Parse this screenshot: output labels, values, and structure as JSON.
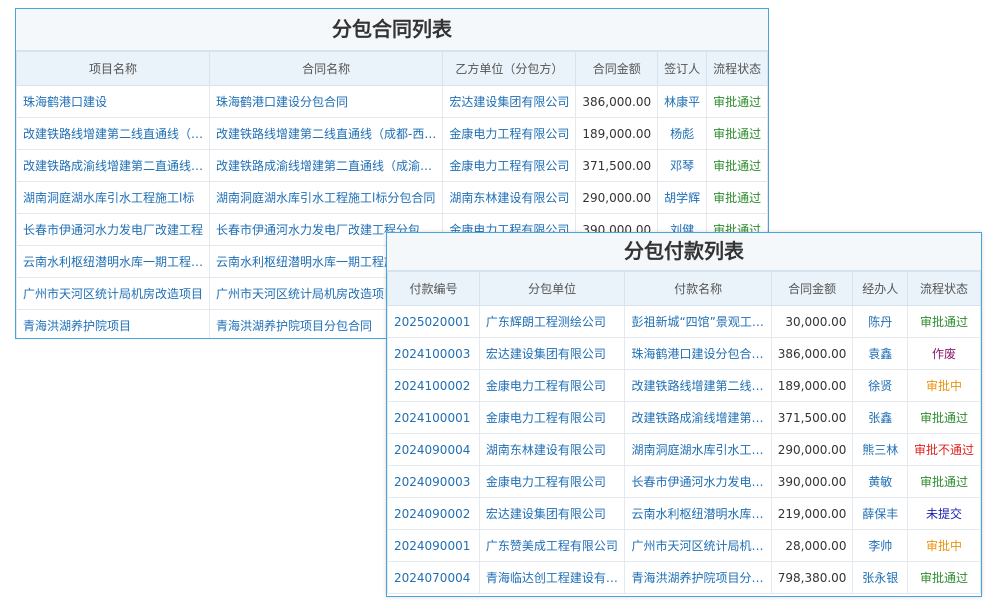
{
  "contract_table": {
    "title": "分包合同列表",
    "columns": [
      "项目名称",
      "合同名称",
      "乙方单位（分包方）",
      "合同金额",
      "签订人",
      "流程状态"
    ],
    "rows": [
      [
        "珠海鹤港口建设",
        "珠海鹤港口建设分包合同",
        "宏达建设集团有限公司",
        "386,000.00",
        "林康平",
        "审批通过"
      ],
      [
        "改建铁路线增建第二线直通线（…",
        "改建铁路线增建第二线直通线（成都-西…",
        "金康电力工程有限公司",
        "189,000.00",
        "杨彪",
        "审批通过"
      ],
      [
        "改建铁路成渝线增建第二直通线…",
        "改建铁路成渝线增建第二直通线（成渝…",
        "金康电力工程有限公司",
        "371,500.00",
        "邓琴",
        "审批通过"
      ],
      [
        "湖南洞庭湖水库引水工程施工l标",
        "湖南洞庭湖水库引水工程施工l标分包合同",
        "湖南东林建设有限公司",
        "290,000.00",
        "胡学辉",
        "审批通过"
      ],
      [
        "长春市伊通河水力发电厂改建工程",
        "长春市伊通河水力发电厂改建工程分包…",
        "金康电力工程有限公司",
        "390,000.00",
        "刘健",
        "审批通过"
      ],
      [
        "云南水利枢纽潜明水库一期工程…",
        "云南水利枢纽潜明水库一期工程施"
      ],
      [
        "广州市天河区统计局机房改造项目",
        "广州市天河区统计局机房改造项目"
      ],
      [
        "青海洪湖养护院项目",
        "青海洪湖养护院项目分包合同"
      ]
    ]
  },
  "payment_table": {
    "title": "分包付款列表",
    "columns": [
      "付款编号",
      "分包单位",
      "付款名称",
      "合同金额",
      "经办人",
      "流程状态"
    ],
    "rows": [
      [
        "2025020001",
        "广东辉朗工程测绘公司",
        "彭祖新城“四馆”景观工…",
        "30,000.00",
        "陈丹",
        "审批通过"
      ],
      [
        "2024100003",
        "宏达建设集团有限公司",
        "珠海鹤港口建设分包合…",
        "386,000.00",
        "袁鑫",
        "作废"
      ],
      [
        "2024100002",
        "金康电力工程有限公司",
        "改建铁路线增建第二线…",
        "189,000.00",
        "徐贤",
        "审批中"
      ],
      [
        "2024100001",
        "金康电力工程有限公司",
        "改建铁路成渝线增建第…",
        "371,500.00",
        "张鑫",
        "审批通过"
      ],
      [
        "2024090004",
        "湖南东林建设有限公司",
        "湖南洞庭湖水库引水工…",
        "290,000.00",
        "熊三林",
        "审批不通过"
      ],
      [
        "2024090003",
        "金康电力工程有限公司",
        "长春市伊通河水力发电…",
        "390,000.00",
        "黄敏",
        "审批通过"
      ],
      [
        "2024090002",
        "宏达建设集团有限公司",
        "云南水利枢纽潜明水库…",
        "219,000.00",
        "薛保丰",
        "未提交"
      ],
      [
        "2024090001",
        "广东赞美成工程有限公司",
        "广州市天河区统计局机…",
        "28,000.00",
        "李帅",
        "审批中"
      ],
      [
        "2024070004",
        "青海临达创工程建设有…",
        "青海洪湖养护院项目分…",
        "798,380.00",
        "张永银",
        "审批通过"
      ]
    ]
  }
}
